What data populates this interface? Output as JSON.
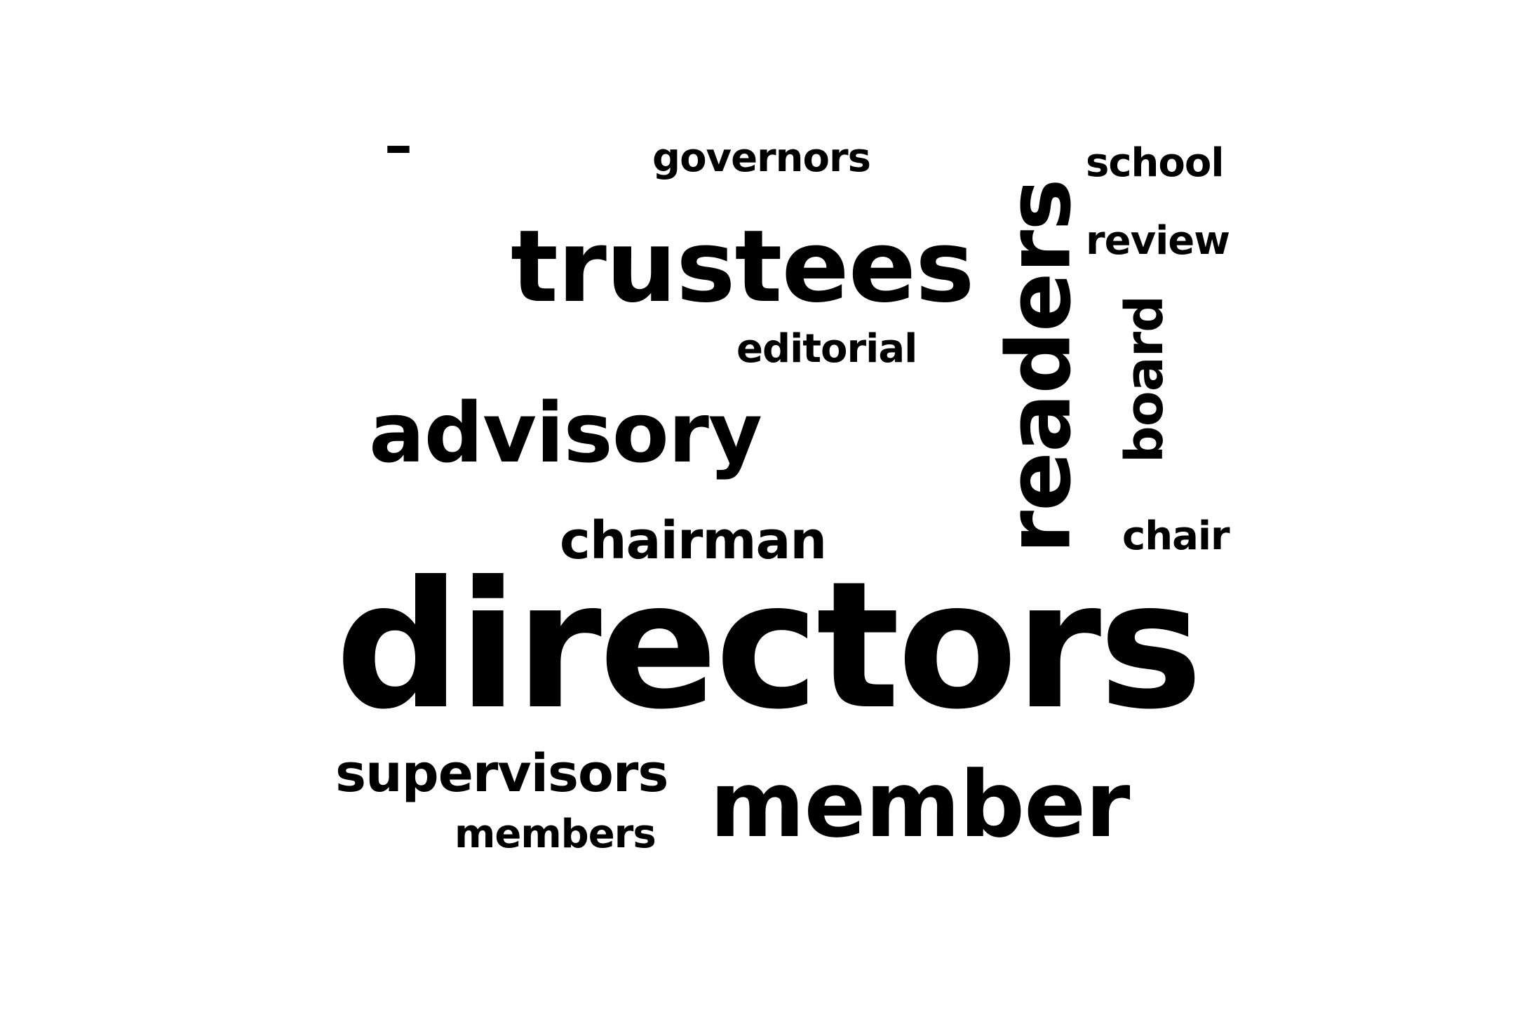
{
  "word_cloud": {
    "text_color": "#000000",
    "background_color": "#ffffff",
    "words": [
      {
        "text": "–"
      },
      {
        "text": "governors"
      },
      {
        "text": "school"
      },
      {
        "text": "trustees"
      },
      {
        "text": "review"
      },
      {
        "text": "readers"
      },
      {
        "text": "editorial"
      },
      {
        "text": "board"
      },
      {
        "text": "advisory"
      },
      {
        "text": "chairman"
      },
      {
        "text": "chair"
      },
      {
        "text": "directors"
      },
      {
        "text": "supervisors"
      },
      {
        "text": "member"
      },
      {
        "text": "members"
      }
    ]
  }
}
